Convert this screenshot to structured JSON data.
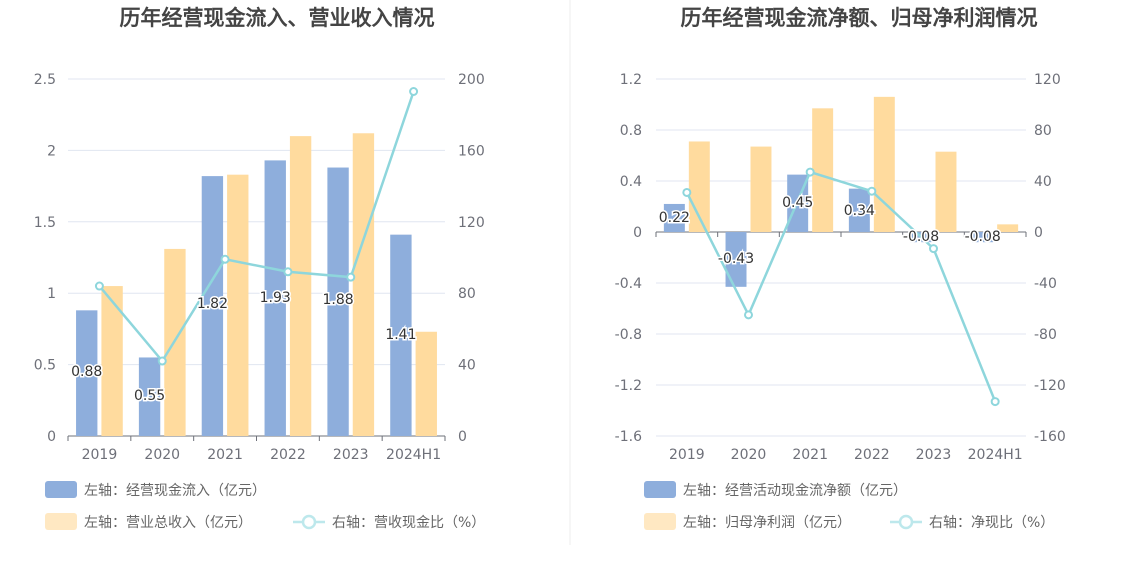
{
  "colors": {
    "bar_primary": "#8eaedc",
    "bar_secondary": "#ffdb9e",
    "line": "#8ed6dc",
    "grid": "#e0e6f1",
    "axis": "#6e7079",
    "divider": "#eeeeee"
  },
  "chart_data": [
    {
      "type": "bar",
      "title": "历年经营现金流入、营业收入情况",
      "categories": [
        "2019",
        "2020",
        "2021",
        "2022",
        "2023",
        "2024H1"
      ],
      "y_left": {
        "min": 0,
        "max": 2.5,
        "ticks": [
          "0",
          "0.5",
          "1",
          "1.5",
          "2",
          "2.5"
        ]
      },
      "y_right": {
        "min": 0,
        "max": 200,
        "ticks": [
          "0",
          "40",
          "80",
          "120",
          "160",
          "200"
        ]
      },
      "grid": true,
      "series": [
        {
          "name": "左轴：经营现金流入（亿元）",
          "type": "bar",
          "axis": "left",
          "values": [
            0.88,
            0.55,
            1.82,
            1.93,
            1.88,
            1.41
          ],
          "labels": [
            "0.88",
            "0.55",
            "1.82",
            "1.93",
            "1.88",
            "1.41"
          ]
        },
        {
          "name": "左轴：营业总收入（亿元）",
          "type": "bar",
          "axis": "left",
          "values": [
            1.05,
            1.31,
            1.83,
            2.1,
            2.12,
            0.73
          ]
        },
        {
          "name": "右轴：营收现金比（%）",
          "type": "line",
          "axis": "right",
          "values": [
            84,
            42,
            99,
            92,
            89,
            193
          ]
        }
      ],
      "legend_position": "bottom-left"
    },
    {
      "type": "bar",
      "title": "历年经营现金流净额、归母净利润情况",
      "categories": [
        "2019",
        "2020",
        "2021",
        "2022",
        "2023",
        "2024H1"
      ],
      "y_left": {
        "min": -1.6,
        "max": 1.2,
        "ticks": [
          "-1.6",
          "-1.2",
          "-0.8",
          "-0.4",
          "0",
          "0.4",
          "0.8",
          "1.2"
        ]
      },
      "y_right": {
        "min": -160,
        "max": 120,
        "ticks": [
          "-160",
          "-120",
          "-80",
          "-40",
          "0",
          "40",
          "80",
          "120"
        ]
      },
      "grid": true,
      "series": [
        {
          "name": "左轴：经营活动现金流净额（亿元）",
          "type": "bar",
          "axis": "left",
          "values": [
            0.22,
            -0.43,
            0.45,
            0.34,
            -0.08,
            -0.08
          ],
          "labels": [
            "0.22",
            "-0.43",
            "0.45",
            "0.34",
            "-0.08",
            "-0.08"
          ]
        },
        {
          "name": "左轴：归母净利润（亿元）",
          "type": "bar",
          "axis": "left",
          "values": [
            0.71,
            0.67,
            0.97,
            1.06,
            0.63,
            0.06
          ]
        },
        {
          "name": "右轴：净现比（%）",
          "type": "line",
          "axis": "right",
          "values": [
            31,
            -65,
            47,
            32,
            -13,
            -133
          ]
        }
      ],
      "legend_position": "bottom-left"
    }
  ]
}
